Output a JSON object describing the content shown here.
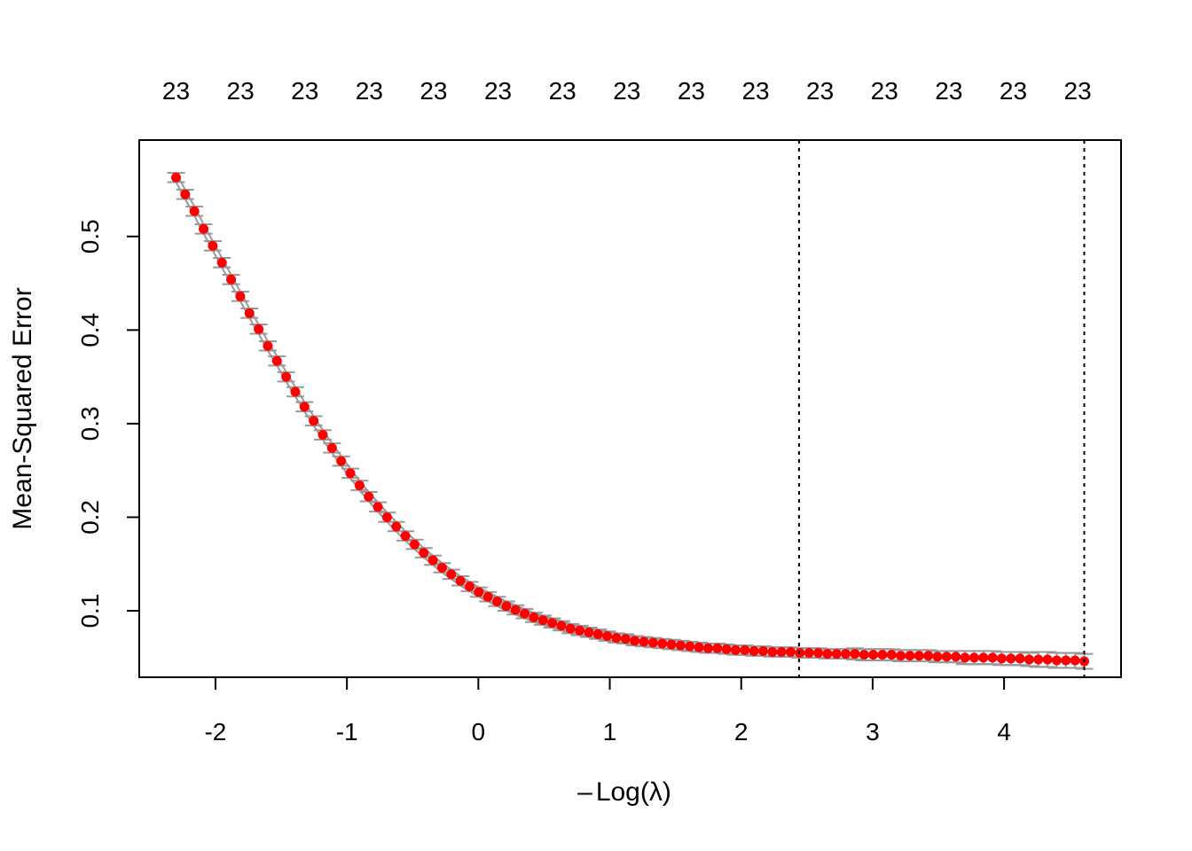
{
  "chart_data": {
    "type": "scatter",
    "title": "",
    "xlabel_prefix": "–",
    "xlabel": "Log(λ)",
    "ylabel": "Mean-Squared Error",
    "xlim": [
      -2.58,
      4.89
    ],
    "ylim": [
      0.029,
      0.603
    ],
    "x_ticks": [
      -2,
      -1,
      0,
      1,
      2,
      3,
      4
    ],
    "x_tick_labels": [
      "-2",
      "-1",
      "0",
      "1",
      "2",
      "3",
      "4"
    ],
    "y_ticks": [
      0.1,
      0.2,
      0.3,
      0.4,
      0.5
    ],
    "y_tick_labels": [
      "0.1",
      "0.2",
      "0.3",
      "0.4",
      "0.5"
    ],
    "top_axis": {
      "positions": [
        -2.3,
        -1.81,
        -1.32,
        -0.83,
        -0.34,
        0.15,
        0.64,
        1.13,
        1.62,
        2.11,
        2.6,
        3.09,
        3.58,
        4.07,
        4.56
      ],
      "labels": [
        "23",
        "23",
        "23",
        "23",
        "23",
        "23",
        "23",
        "23",
        "23",
        "23",
        "23",
        "23",
        "23",
        "23",
        "23"
      ]
    },
    "vlines": [
      2.44,
      4.61
    ],
    "grid": false,
    "series": [
      {
        "marker_color": "#ff0000",
        "errorbar_color": "#999999",
        "x_start": -2.3,
        "x_end": 4.61,
        "points": 100,
        "mse": [
          0.563,
          0.545,
          0.527,
          0.508,
          0.49,
          0.472,
          0.454,
          0.436,
          0.418,
          0.401,
          0.383,
          0.367,
          0.35,
          0.334,
          0.318,
          0.303,
          0.288,
          0.274,
          0.26,
          0.247,
          0.234,
          0.222,
          0.211,
          0.2,
          0.19,
          0.18,
          0.171,
          0.162,
          0.154,
          0.146,
          0.139,
          0.132,
          0.126,
          0.12,
          0.115,
          0.11,
          0.105,
          0.101,
          0.097,
          0.093,
          0.09,
          0.087,
          0.084,
          0.081,
          0.079,
          0.077,
          0.075,
          0.073,
          0.071,
          0.07,
          0.068,
          0.067,
          0.066,
          0.065,
          0.064,
          0.063,
          0.062,
          0.061,
          0.06,
          0.06,
          0.059,
          0.058,
          0.058,
          0.057,
          0.057,
          0.056,
          0.056,
          0.056,
          0.055,
          0.055,
          0.055,
          0.054,
          0.054,
          0.054,
          0.054,
          0.053,
          0.053,
          0.053,
          0.053,
          0.052,
          0.052,
          0.052,
          0.052,
          0.051,
          0.051,
          0.051,
          0.05,
          0.05,
          0.05,
          0.05,
          0.049,
          0.049,
          0.049,
          0.048,
          0.048,
          0.048,
          0.047,
          0.047,
          0.047,
          0.046
        ],
        "se": [
          0.005,
          0.005,
          0.005,
          0.005,
          0.005,
          0.005,
          0.005,
          0.005,
          0.005,
          0.005,
          0.005,
          0.005,
          0.005,
          0.005,
          0.005,
          0.005,
          0.005,
          0.005,
          0.005,
          0.005,
          0.005,
          0.005,
          0.005,
          0.005,
          0.005,
          0.005,
          0.005,
          0.005,
          0.005,
          0.005,
          0.005,
          0.005,
          0.005,
          0.005,
          0.005,
          0.005,
          0.005,
          0.005,
          0.005,
          0.005,
          0.005,
          0.005,
          0.005,
          0.005,
          0.005,
          0.005,
          0.005,
          0.005,
          0.005,
          0.005,
          0.005,
          0.005,
          0.005,
          0.005,
          0.005,
          0.005,
          0.005,
          0.005,
          0.005,
          0.005,
          0.005,
          0.005,
          0.005,
          0.005,
          0.005,
          0.005,
          0.005,
          0.005,
          0.005,
          0.005,
          0.005,
          0.005,
          0.005,
          0.005,
          0.006,
          0.006,
          0.006,
          0.006,
          0.006,
          0.006,
          0.006,
          0.006,
          0.006,
          0.006,
          0.006,
          0.006,
          0.007,
          0.007,
          0.007,
          0.007,
          0.007,
          0.007,
          0.007,
          0.007,
          0.008,
          0.008,
          0.008,
          0.008,
          0.008,
          0.008
        ]
      }
    ]
  }
}
